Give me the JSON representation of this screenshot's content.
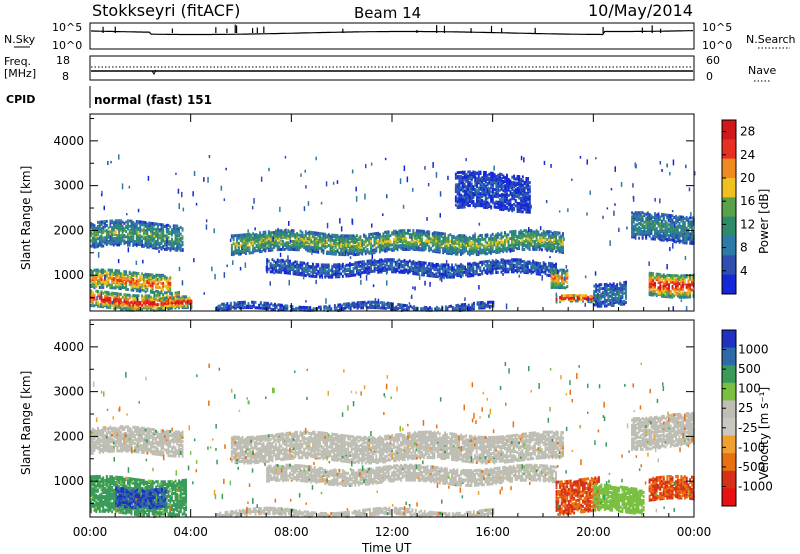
{
  "header": {
    "station": "Stokkseyri (fitACF)",
    "beam": "Beam 14",
    "date": "10/May/2014"
  },
  "status_panels": {
    "nsky_label": "N.Sky",
    "nsky_ticks": [
      "10^5",
      "10^0"
    ],
    "nsearch_label": "N.Search",
    "nsearch_ticks": [
      "10^5",
      "10^0"
    ],
    "freq_label": "Freq.",
    "freq_unit": "[MHz]",
    "freq_ticks": [
      "18",
      "8"
    ],
    "nave_label": "Nave",
    "nave_ticks": [
      "60",
      "0"
    ],
    "cpid_label": "CPID",
    "cpid_value": "normal (fast) 151"
  },
  "colors": {
    "power_scale": [
      "#1428d8",
      "#2e4fb0",
      "#2e7aa6",
      "#2f8a6a",
      "#5aa24a",
      "#f0c020",
      "#f08a20",
      "#e83020",
      "#d01818"
    ],
    "velocity_scale": [
      "#2030c0",
      "#2e6aa8",
      "#3a9a5a",
      "#7ac040",
      "#bebeb4",
      "#c8c8c0",
      "#f0a030",
      "#e87010",
      "#d83018",
      "#e81010"
    ],
    "ground_scatter": "#bebeb4"
  },
  "chart_data": [
    {
      "type": "heatmap",
      "name_panel": "power",
      "xlabel": "Time UT",
      "ylabel": "Slant Range [km]",
      "xticks": [
        "00:00",
        "04:00",
        "08:00",
        "12:00",
        "16:00",
        "20:00",
        "00:00"
      ],
      "xrange_hours": [
        0,
        24
      ],
      "yticks": [
        "1000",
        "2000",
        "3000",
        "4000"
      ],
      "yrange_km": [
        200,
        4600
      ],
      "colorbar_label": "Power [dB]",
      "colorbar_ticks": [
        "4",
        "8",
        "12",
        "16",
        "20",
        "24",
        "28"
      ],
      "colorbar_range": [
        0,
        30
      ],
      "grid": false,
      "bands": [
        {
          "t0": 0.0,
          "t1": 3.7,
          "r0": 1650,
          "r1": 2200,
          "level": 12
        },
        {
          "t0": 0.0,
          "t1": 3.2,
          "r0": 700,
          "r1": 1100,
          "level": 20
        },
        {
          "t0": 0.0,
          "t1": 3.5,
          "r0": 300,
          "r1": 650,
          "level": 24
        },
        {
          "t0": 2.8,
          "t1": 4.0,
          "r0": 250,
          "r1": 500,
          "level": 24
        },
        {
          "t0": 5.6,
          "t1": 18.8,
          "r0": 1550,
          "r1": 2000,
          "level": 14
        },
        {
          "t0": 7.0,
          "t1": 18.5,
          "r0": 1050,
          "r1": 1350,
          "level": 6
        },
        {
          "t0": 5.0,
          "t1": 16.0,
          "r0": 250,
          "r1": 400,
          "level": 6
        },
        {
          "t0": 14.5,
          "t1": 17.5,
          "r0": 2500,
          "r1": 3300,
          "level": 4
        },
        {
          "t0": 18.5,
          "t1": 20.2,
          "r0": 400,
          "r1": 550,
          "level": 26
        },
        {
          "t0": 18.3,
          "t1": 19.0,
          "r0": 700,
          "r1": 1100,
          "level": 20
        },
        {
          "t0": 20.0,
          "t1": 21.3,
          "r0": 400,
          "r1": 900,
          "level": 8
        },
        {
          "t0": 21.5,
          "t1": 24.0,
          "r0": 1800,
          "r1": 2400,
          "level": 10
        },
        {
          "t0": 22.2,
          "t1": 24.0,
          "r0": 600,
          "r1": 1100,
          "level": 24
        }
      ]
    },
    {
      "type": "heatmap",
      "name_panel": "velocity",
      "xlabel": "Time UT",
      "ylabel": "Slant Range [km]",
      "xticks": [
        "00:00",
        "04:00",
        "08:00",
        "12:00",
        "16:00",
        "20:00",
        "00:00"
      ],
      "xrange_hours": [
        0,
        24
      ],
      "yticks": [
        "1000",
        "2000",
        "3000",
        "4000"
      ],
      "yrange_km": [
        200,
        4600
      ],
      "colorbar_label": "Velocity [m s⁻¹]",
      "colorbar_ticks": [
        "1000",
        "500",
        "100",
        "25",
        "-25",
        "-100",
        "-500",
        "-1000"
      ],
      "grid": false,
      "bands": [
        {
          "t0": 0.0,
          "t1": 3.7,
          "r0": 1650,
          "r1": 2200,
          "velocity": 0
        },
        {
          "t0": 0.0,
          "t1": 3.8,
          "r0": 300,
          "r1": 1100,
          "velocity": 150
        },
        {
          "t0": 1.0,
          "t1": 3.0,
          "r0": 500,
          "r1": 900,
          "velocity": 700
        },
        {
          "t0": 5.6,
          "t1": 18.8,
          "r0": 1500,
          "r1": 2100,
          "velocity": 0
        },
        {
          "t0": 7.0,
          "t1": 18.5,
          "r0": 1000,
          "r1": 1350,
          "velocity": 0
        },
        {
          "t0": 5.0,
          "t1": 16.0,
          "r0": 250,
          "r1": 400,
          "velocity": 0
        },
        {
          "t0": 18.5,
          "t1": 20.2,
          "r0": 350,
          "r1": 1100,
          "velocity": -300
        },
        {
          "t0": 20.0,
          "t1": 22.0,
          "r0": 350,
          "r1": 900,
          "velocity": 60
        },
        {
          "t0": 21.5,
          "t1": 24.0,
          "r0": 1800,
          "r1": 2500,
          "velocity": 0
        },
        {
          "t0": 22.2,
          "t1": 24.0,
          "r0": 600,
          "r1": 1100,
          "velocity": -300
        }
      ]
    }
  ]
}
